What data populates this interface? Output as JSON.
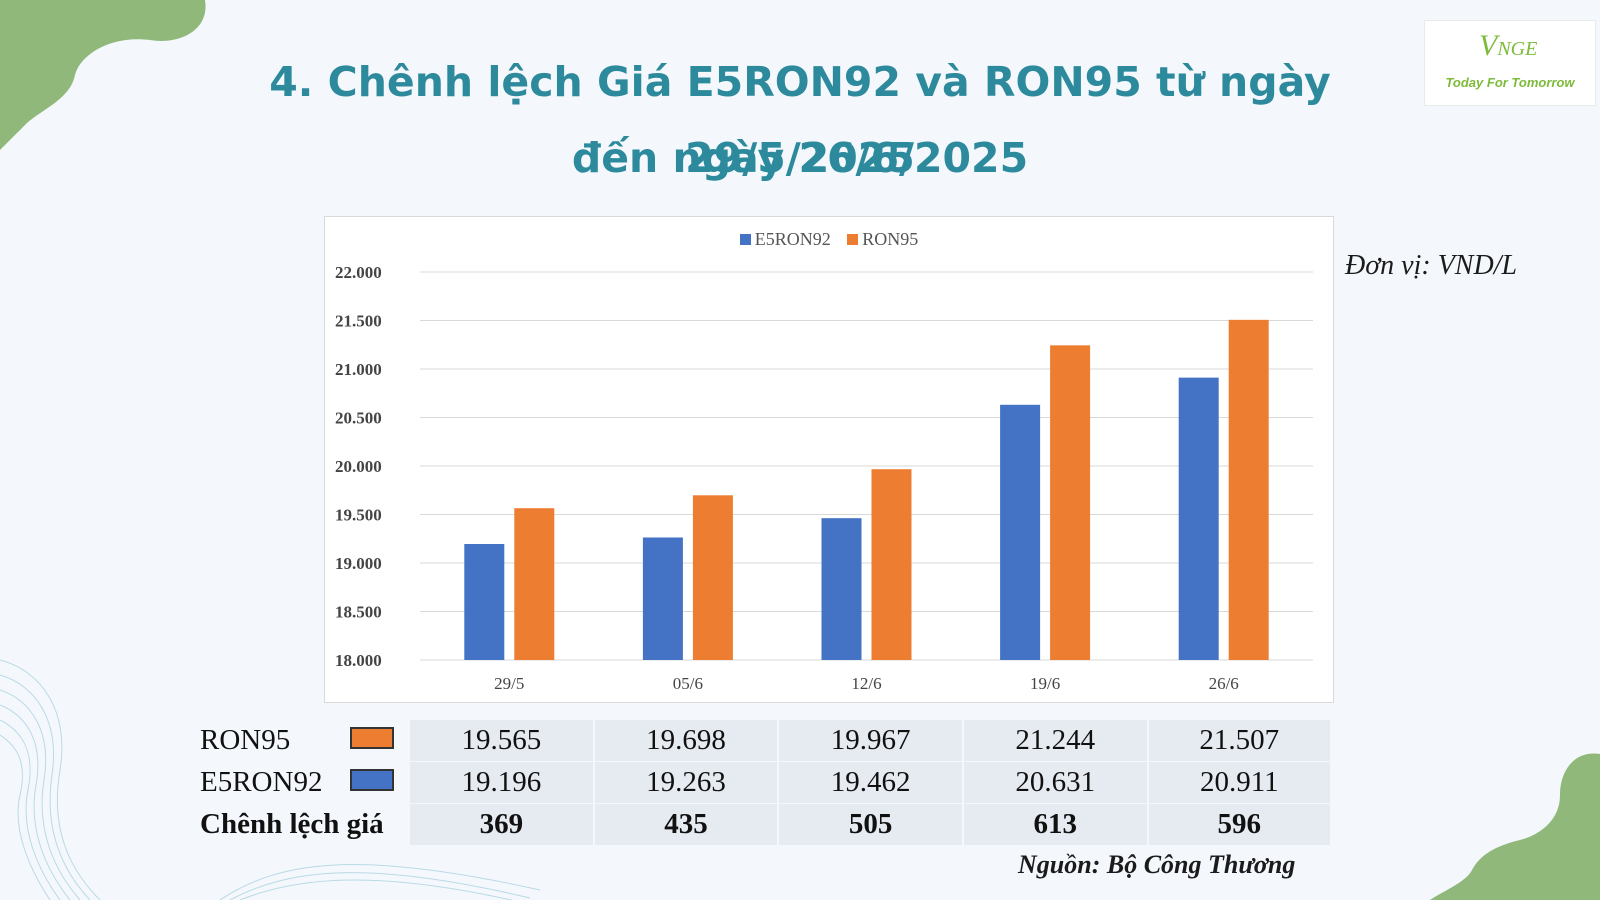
{
  "title": {
    "line1": "4. Chênh lệch Giá E5RON92 và RON95 từ ngày 29/5/2025",
    "line2": "đến ngày 26/6/2025"
  },
  "logo": {
    "mark_initial": "V",
    "mark_rest": "NGE",
    "tagline": "Today For Tomorrow"
  },
  "unit_label": "Đơn vị: VND/L",
  "colors": {
    "title": "#2c8a9c",
    "e5ron92": "#4472c4",
    "ron95": "#ed7d31",
    "decor_green": "#8fb87a"
  },
  "chart_data": {
    "type": "bar",
    "title": "",
    "xlabel": "",
    "ylabel": "",
    "categories": [
      "29/5",
      "05/6",
      "12/6",
      "19/6",
      "26/6"
    ],
    "series": [
      {
        "name": "E5RON92",
        "color": "#4472c4",
        "values": [
          19196,
          19263,
          19462,
          20631,
          20911
        ]
      },
      {
        "name": "RON95",
        "color": "#ed7d31",
        "values": [
          19565,
          19698,
          19967,
          21244,
          21507
        ]
      }
    ],
    "ylim": [
      18000,
      22000
    ],
    "yticks": [
      18000,
      18500,
      19000,
      19500,
      20000,
      20500,
      21000,
      21500,
      22000
    ],
    "ytick_labels": [
      "18.000",
      "18.500",
      "19.000",
      "19.500",
      "20.000",
      "20.500",
      "21.000",
      "21.500",
      "22.000"
    ],
    "grid": true,
    "legend_position": "top-center"
  },
  "table": {
    "rows": [
      {
        "label": "RON95",
        "swatch": "#ed7d31",
        "values": [
          "19.565",
          "19.698",
          "19.967",
          "21.244",
          "21.507"
        ],
        "bold": false
      },
      {
        "label": "E5RON92",
        "swatch": "#4472c4",
        "values": [
          "19.196",
          "19.263",
          "19.462",
          "20.631",
          "20.911"
        ],
        "bold": false
      },
      {
        "label": "Chênh lệch giá",
        "swatch": "",
        "values": [
          "369",
          "435",
          "505",
          "613",
          "596"
        ],
        "bold": true
      }
    ]
  },
  "source": "Nguồn: Bộ Công Thương"
}
